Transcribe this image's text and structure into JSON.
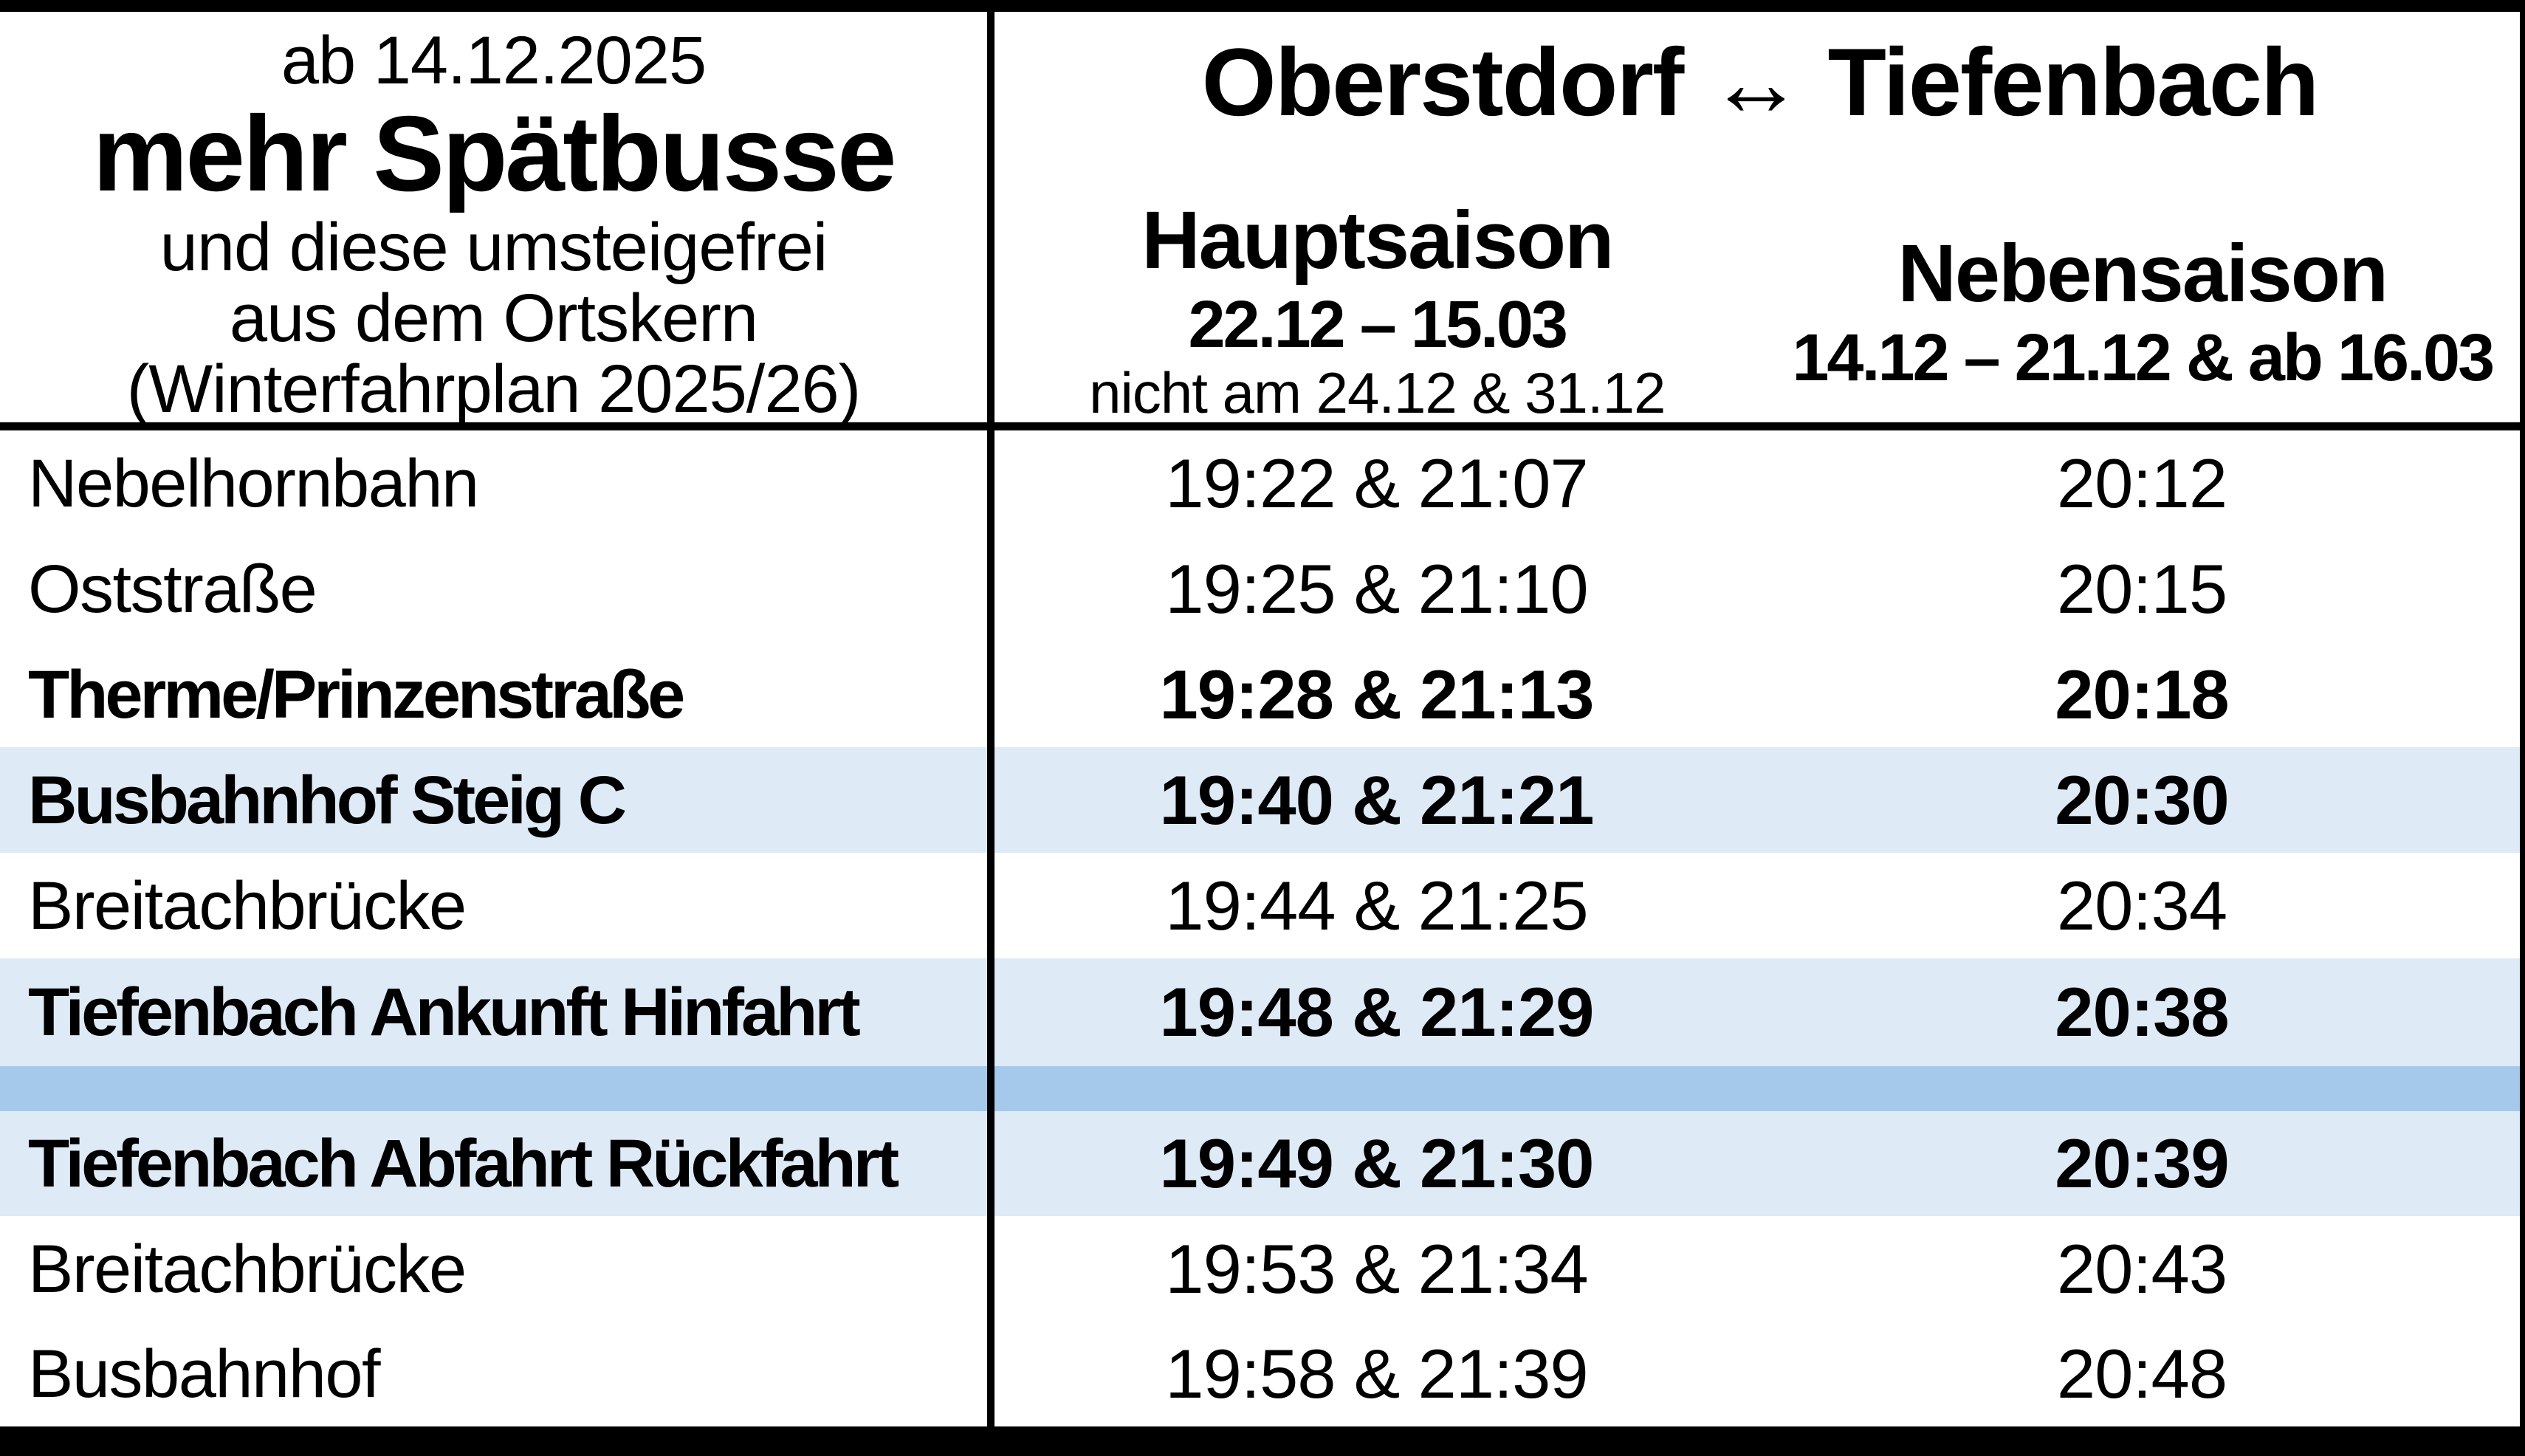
{
  "document": {
    "kind": "bus-timetable-notice",
    "background_color": "#ffffff",
    "frame_color": "#000000"
  },
  "colors": {
    "highlight_row": "#deeaf6",
    "separator_band": "#a5c9eb",
    "text": "#000000"
  },
  "header": {
    "left": {
      "valid_from": "ab 14.12.2025",
      "headline": "mehr Spätbusse",
      "subline1": "und diese umsteigefrei",
      "subline2": "aus dem Ortskern",
      "plan_note": "(Winterfahrplan 2025/26)"
    },
    "title": "Oberstdorf ↔ Tiefenbach",
    "columns": {
      "hauptsaison": {
        "label": "Hauptsaison",
        "dates": "22.12 – 15.03",
        "note": "nicht am 24.12 & 31.12"
      },
      "nebensaison": {
        "label": "Nebensaison",
        "dates": "14.12 – 21.12 & ab 16.03"
      }
    }
  },
  "timetable": {
    "rows": [
      {
        "stop": "Nebelhornbahn",
        "hauptsaison": "19:22 & 21:07",
        "nebensaison": "20:12",
        "bold": false,
        "highlighted": false
      },
      {
        "stop": "Oststraße",
        "hauptsaison": "19:25 & 21:10",
        "nebensaison": "20:15",
        "bold": false,
        "highlighted": false
      },
      {
        "stop": "Therme/Prinzenstraße",
        "hauptsaison": "19:28 & 21:13",
        "nebensaison": "20:18",
        "bold": true,
        "highlighted": false
      },
      {
        "stop": "Busbahnhof Steig C",
        "hauptsaison": "19:40 & 21:21",
        "nebensaison": "20:30",
        "bold": true,
        "highlighted": true
      },
      {
        "stop": "Breitachbrücke",
        "hauptsaison": "19:44 & 21:25",
        "nebensaison": "20:34",
        "bold": false,
        "highlighted": false
      },
      {
        "stop": "Tiefenbach Ankunft Hinfahrt",
        "hauptsaison": "19:48 & 21:29",
        "nebensaison": "20:38",
        "bold": true,
        "highlighted": true
      },
      {
        "separator": true
      },
      {
        "stop": "Tiefenbach Abfahrt Rückfahrt",
        "hauptsaison": "19:49 & 21:30",
        "nebensaison": "20:39",
        "bold": true,
        "highlighted": true
      },
      {
        "stop": "Breitachbrücke",
        "hauptsaison": "19:53 & 21:34",
        "nebensaison": "20:43",
        "bold": false,
        "highlighted": false
      },
      {
        "stop": "Busbahnhof",
        "hauptsaison": "19:58 & 21:39",
        "nebensaison": "20:48",
        "bold": false,
        "highlighted": false
      }
    ]
  }
}
